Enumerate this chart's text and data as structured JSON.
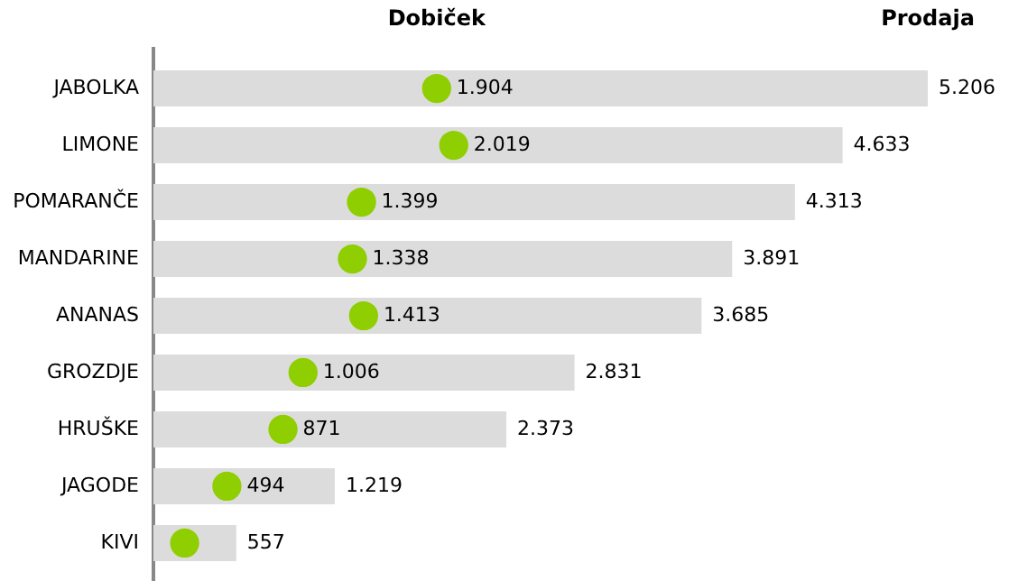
{
  "chart_data": {
    "type": "bar",
    "orientation": "horizontal",
    "legend": false,
    "categories": [
      "JABOLKA",
      "LIMONE",
      "POMARANČE",
      "MANDARINE",
      "ANANAS",
      "GROZDJE",
      "HRUŠKE",
      "JAGODE",
      "KIVI"
    ],
    "series": [
      {
        "name": "Prodaja",
        "color": "#dcdcdc",
        "values": [
          5206,
          4633,
          4313,
          3891,
          3685,
          2831,
          2373,
          1219,
          557
        ],
        "value_labels": [
          "5.206",
          "4.633",
          "4.313",
          "3.891",
          "3.685",
          "2.831",
          "2.373",
          "1.219",
          "557"
        ]
      },
      {
        "name": "Dobiček",
        "type": "scatter",
        "marker": "circle",
        "color": "#8fce00",
        "values": [
          1904,
          2019,
          1399,
          1338,
          1413,
          1006,
          871,
          494,
          210
        ],
        "value_labels": [
          "1.904",
          "2.019",
          "1.399",
          "1.338",
          "1.413",
          "1.006",
          "871",
          "494",
          null
        ]
      }
    ]
  }
}
